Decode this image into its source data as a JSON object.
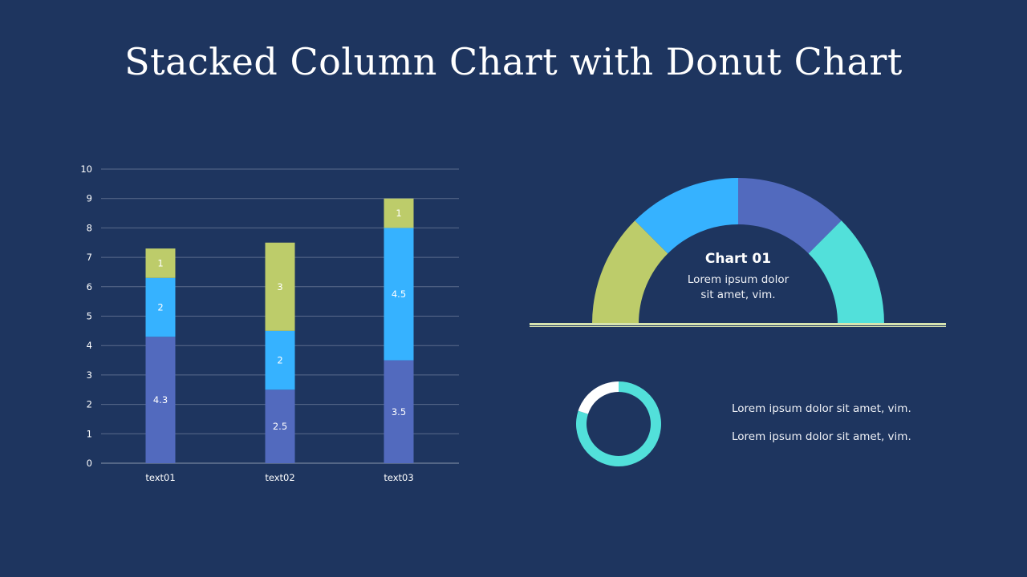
{
  "title": "Stacked Column Chart with Donut Chart",
  "colors": {
    "background": "#1e355f",
    "series1": "#526abe",
    "series2": "#36b2ff",
    "series3": "#bdcc6a",
    "teal": "#52e0da",
    "white": "#ffffff"
  },
  "chart_data": [
    {
      "type": "bar",
      "stacked": true,
      "categories": [
        "text01",
        "text02",
        "text03"
      ],
      "series": [
        {
          "values": [
            4.3,
            2.5,
            3.5
          ],
          "color": "#526abe"
        },
        {
          "values": [
            2,
            2,
            4.5
          ],
          "color": "#36b2ff"
        },
        {
          "values": [
            1,
            3,
            1
          ],
          "color": "#bdcc6a"
        }
      ],
      "ylim": [
        0,
        10
      ],
      "yticks": [
        "0",
        "1",
        "2",
        "3",
        "4",
        "5",
        "6",
        "7",
        "8",
        "9",
        "10"
      ],
      "grid": true,
      "data_labels": true
    },
    {
      "type": "pie",
      "variant": "half-donut",
      "title": "Chart 01",
      "subtitle": [
        "Lorem ipsum dolor",
        "sit amet, vim."
      ],
      "values": [
        25,
        25,
        25,
        25
      ],
      "colors": [
        "#bdcc6a",
        "#36b2ff",
        "#526abe",
        "#52e0da"
      ]
    },
    {
      "type": "pie",
      "variant": "donut",
      "values": [
        80,
        20
      ],
      "colors": [
        "#52e0da",
        "#ffffff"
      ]
    }
  ],
  "notes": [
    "Lorem ipsum dolor sit amet, vim.",
    "Lorem ipsum dolor sit amet, vim."
  ]
}
